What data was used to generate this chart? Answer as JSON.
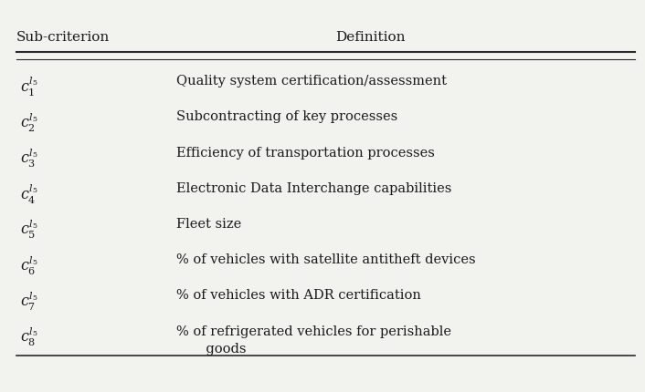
{
  "header_col1": "Sub-criterion",
  "header_col2": "Definition",
  "rows": [
    {
      "sub": "1",
      "definition": "Quality system certification/assessment"
    },
    {
      "sub": "2",
      "definition": "Subcontracting of key processes"
    },
    {
      "sub": "3",
      "definition": "Efficiency of transportation processes"
    },
    {
      "sub": "4",
      "definition": "Electronic Data Interchange capabilities"
    },
    {
      "sub": "5",
      "definition": "Fleet size"
    },
    {
      "sub": "6",
      "definition": "% of vehicles with satellite antitheft devices"
    },
    {
      "sub": "7",
      "definition": "% of vehicles with ADR certification"
    },
    {
      "sub": "8",
      "definition": "% of refrigerated vehicles for perishable\n       goods"
    }
  ],
  "bg_color": "#f2f2ee",
  "text_color": "#1a1a1a",
  "line_color": "#2a2a2a",
  "font_size_header": 11,
  "font_size_body": 10.5
}
